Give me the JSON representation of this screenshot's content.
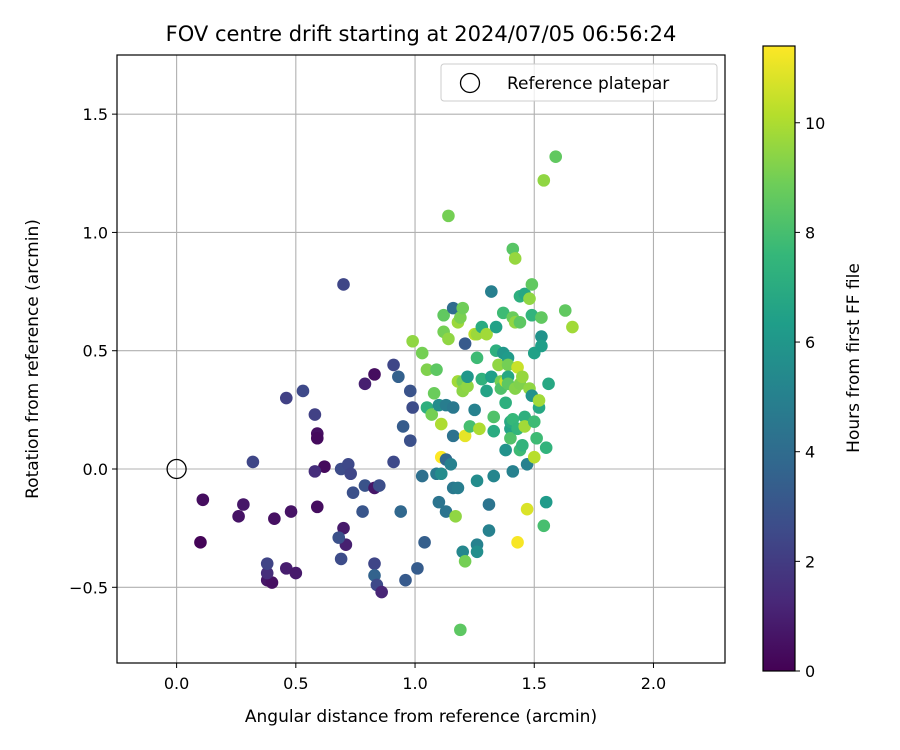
{
  "chart_data": {
    "type": "scatter",
    "title": "FOV centre drift starting at 2024/07/05 06:56:24",
    "xlabel": "Angular distance from reference (arcmin)",
    "ylabel": "Rotation from reference (arcmin)",
    "xlim": [
      -0.25,
      2.3
    ],
    "ylim": [
      -0.82,
      1.75
    ],
    "xticks": [
      0.0,
      0.5,
      1.0,
      1.5,
      2.0
    ],
    "xtick_labels": [
      "0.0",
      "0.5",
      "1.0",
      "1.5",
      "2.0"
    ],
    "yticks": [
      -0.5,
      0.0,
      0.5,
      1.0,
      1.5
    ],
    "ytick_labels": [
      "−0.5",
      "0.0",
      "0.5",
      "1.0",
      "1.5"
    ],
    "grid": true,
    "legend": {
      "placement": "top-right",
      "entries": [
        "Reference platepar"
      ]
    },
    "reference_point": {
      "name": "Reference platepar",
      "x": 0.0,
      "y": 0.0
    },
    "colorbar": {
      "label": "Hours from first FF file",
      "colormap": "viridis",
      "range": [
        0,
        11.4
      ],
      "ticks": [
        0,
        2,
        4,
        6,
        8,
        10
      ],
      "tick_labels": [
        "0",
        "2",
        "4",
        "6",
        "8",
        "10"
      ]
    },
    "points": [
      {
        "x": 0.1,
        "y": -0.31,
        "c": 0.1
      },
      {
        "x": 0.11,
        "y": -0.13,
        "c": 0.4
      },
      {
        "x": 0.26,
        "y": -0.2,
        "c": 0.6
      },
      {
        "x": 0.28,
        "y": -0.15,
        "c": 0.7
      },
      {
        "x": 0.41,
        "y": -0.21,
        "c": 0.5
      },
      {
        "x": 0.48,
        "y": -0.18,
        "c": 0.6
      },
      {
        "x": 0.46,
        "y": -0.42,
        "c": 0.9
      },
      {
        "x": 0.5,
        "y": -0.44,
        "c": 0.8
      },
      {
        "x": 0.38,
        "y": -0.47,
        "c": 0.7
      },
      {
        "x": 0.4,
        "y": -0.48,
        "c": 0.5
      },
      {
        "x": 0.38,
        "y": -0.44,
        "c": 1.5
      },
      {
        "x": 0.38,
        "y": -0.4,
        "c": 2.3
      },
      {
        "x": 0.32,
        "y": 0.03,
        "c": 2.4
      },
      {
        "x": 0.46,
        "y": 0.3,
        "c": 2.2
      },
      {
        "x": 0.53,
        "y": 0.33,
        "c": 2.5
      },
      {
        "x": 0.58,
        "y": 0.23,
        "c": 2.2
      },
      {
        "x": 0.59,
        "y": 0.15,
        "c": 0.5
      },
      {
        "x": 0.59,
        "y": 0.13,
        "c": 0.3
      },
      {
        "x": 0.62,
        "y": 0.01,
        "c": 0.3
      },
      {
        "x": 0.58,
        "y": -0.01,
        "c": 1.5
      },
      {
        "x": 0.59,
        "y": -0.16,
        "c": 0.4
      },
      {
        "x": 0.7,
        "y": 0.78,
        "c": 2.4
      },
      {
        "x": 0.69,
        "y": 0.0,
        "c": 2.6
      },
      {
        "x": 0.72,
        "y": 0.02,
        "c": 2.5
      },
      {
        "x": 0.73,
        "y": -0.02,
        "c": 2.4
      },
      {
        "x": 0.74,
        "y": -0.1,
        "c": 2.8
      },
      {
        "x": 0.79,
        "y": -0.07,
        "c": 2.9
      },
      {
        "x": 0.78,
        "y": -0.18,
        "c": 3.0
      },
      {
        "x": 0.7,
        "y": -0.25,
        "c": 0.8
      },
      {
        "x": 0.71,
        "y": -0.32,
        "c": 1.0
      },
      {
        "x": 0.68,
        "y": -0.29,
        "c": 2.8
      },
      {
        "x": 0.69,
        "y": -0.38,
        "c": 2.6
      },
      {
        "x": 0.79,
        "y": 0.36,
        "c": 1.0
      },
      {
        "x": 0.83,
        "y": 0.4,
        "c": 0.4
      },
      {
        "x": 0.83,
        "y": -0.08,
        "c": 0.7
      },
      {
        "x": 0.85,
        "y": -0.07,
        "c": 2.7
      },
      {
        "x": 0.83,
        "y": -0.4,
        "c": 2.4
      },
      {
        "x": 0.83,
        "y": -0.45,
        "c": 3.6
      },
      {
        "x": 0.84,
        "y": -0.49,
        "c": 2.5
      },
      {
        "x": 0.86,
        "y": -0.52,
        "c": 1.2
      },
      {
        "x": 0.91,
        "y": 0.44,
        "c": 2.4
      },
      {
        "x": 0.93,
        "y": 0.39,
        "c": 3.5
      },
      {
        "x": 0.95,
        "y": 0.18,
        "c": 3.3
      },
      {
        "x": 0.91,
        "y": 0.03,
        "c": 2.5
      },
      {
        "x": 0.94,
        "y": -0.18,
        "c": 3.8
      },
      {
        "x": 0.98,
        "y": 0.33,
        "c": 2.9
      },
      {
        "x": 0.99,
        "y": 0.26,
        "c": 2.6
      },
      {
        "x": 0.98,
        "y": 0.12,
        "c": 2.8
      },
      {
        "x": 0.96,
        "y": -0.47,
        "c": 3.2
      },
      {
        "x": 1.01,
        "y": -0.42,
        "c": 3.3
      },
      {
        "x": 1.04,
        "y": -0.31,
        "c": 3.4
      },
      {
        "x": 1.03,
        "y": -0.03,
        "c": 4.2
      },
      {
        "x": 0.99,
        "y": 0.54,
        "c": 9.5
      },
      {
        "x": 1.03,
        "y": 0.49,
        "c": 9.0
      },
      {
        "x": 1.05,
        "y": 0.42,
        "c": 9.2
      },
      {
        "x": 1.05,
        "y": 0.26,
        "c": 7.2
      },
      {
        "x": 1.07,
        "y": 0.23,
        "c": 9.0
      },
      {
        "x": 1.08,
        "y": 0.32,
        "c": 8.8
      },
      {
        "x": 1.09,
        "y": 0.42,
        "c": 8.5
      },
      {
        "x": 1.1,
        "y": 0.27,
        "c": 5.5
      },
      {
        "x": 1.11,
        "y": 0.19,
        "c": 10.0
      },
      {
        "x": 1.11,
        "y": 0.05,
        "c": 11.4
      },
      {
        "x": 1.13,
        "y": 0.04,
        "c": 3.8
      },
      {
        "x": 1.12,
        "y": 0.58,
        "c": 9.0
      },
      {
        "x": 1.12,
        "y": 0.65,
        "c": 8.6
      },
      {
        "x": 1.14,
        "y": 0.55,
        "c": 9.5
      },
      {
        "x": 1.14,
        "y": 1.07,
        "c": 9.0
      },
      {
        "x": 1.15,
        "y": 0.02,
        "c": 5.0
      },
      {
        "x": 1.13,
        "y": 0.27,
        "c": 4.8
      },
      {
        "x": 1.16,
        "y": 0.68,
        "c": 4.0
      },
      {
        "x": 1.16,
        "y": 0.14,
        "c": 4.3
      },
      {
        "x": 1.16,
        "y": 0.26,
        "c": 4.6
      },
      {
        "x": 1.09,
        "y": -0.02,
        "c": 4.7
      },
      {
        "x": 1.11,
        "y": -0.02,
        "c": 5.5
      },
      {
        "x": 1.1,
        "y": -0.14,
        "c": 4.4
      },
      {
        "x": 1.13,
        "y": -0.18,
        "c": 4.4
      },
      {
        "x": 1.16,
        "y": -0.08,
        "c": 4.6
      },
      {
        "x": 1.18,
        "y": -0.08,
        "c": 4.8
      },
      {
        "x": 1.17,
        "y": -0.2,
        "c": 9.5
      },
      {
        "x": 1.19,
        "y": -0.68,
        "c": 8.5
      },
      {
        "x": 1.2,
        "y": -0.35,
        "c": 5.3
      },
      {
        "x": 1.21,
        "y": -0.39,
        "c": 9.0
      },
      {
        "x": 1.18,
        "y": 0.37,
        "c": 9.8
      },
      {
        "x": 1.18,
        "y": 0.62,
        "c": 9.7
      },
      {
        "x": 1.19,
        "y": 0.64,
        "c": 9.1
      },
      {
        "x": 1.2,
        "y": 0.68,
        "c": 8.9
      },
      {
        "x": 1.2,
        "y": 0.37,
        "c": 9.0
      },
      {
        "x": 1.2,
        "y": 0.33,
        "c": 9.4
      },
      {
        "x": 1.21,
        "y": 0.53,
        "c": 3.2
      },
      {
        "x": 1.22,
        "y": 0.35,
        "c": 9.5
      },
      {
        "x": 1.22,
        "y": 0.39,
        "c": 6.0
      },
      {
        "x": 1.21,
        "y": 0.14,
        "c": 11.0
      },
      {
        "x": 1.23,
        "y": 0.18,
        "c": 8.0
      },
      {
        "x": 1.25,
        "y": 0.25,
        "c": 5.0
      },
      {
        "x": 1.25,
        "y": 0.57,
        "c": 10.2
      },
      {
        "x": 1.26,
        "y": 0.57,
        "c": 9.7
      },
      {
        "x": 1.26,
        "y": 0.47,
        "c": 7.8
      },
      {
        "x": 1.27,
        "y": 0.17,
        "c": 10.0
      },
      {
        "x": 1.26,
        "y": -0.05,
        "c": 5.5
      },
      {
        "x": 1.26,
        "y": -0.32,
        "c": 5.0
      },
      {
        "x": 1.26,
        "y": -0.35,
        "c": 5.6
      },
      {
        "x": 1.28,
        "y": 0.6,
        "c": 7.0
      },
      {
        "x": 1.28,
        "y": 0.38,
        "c": 7.3
      },
      {
        "x": 1.3,
        "y": 0.33,
        "c": 6.6
      },
      {
        "x": 1.3,
        "y": 0.57,
        "c": 9.8
      },
      {
        "x": 1.32,
        "y": 0.75,
        "c": 4.9
      },
      {
        "x": 1.31,
        "y": -0.15,
        "c": 4.4
      },
      {
        "x": 1.31,
        "y": -0.26,
        "c": 5.0
      },
      {
        "x": 1.32,
        "y": 0.39,
        "c": 6.4
      },
      {
        "x": 1.33,
        "y": 0.22,
        "c": 8.2
      },
      {
        "x": 1.33,
        "y": 0.16,
        "c": 7.0
      },
      {
        "x": 1.33,
        "y": -0.03,
        "c": 5.2
      },
      {
        "x": 1.34,
        "y": 0.6,
        "c": 6.5
      },
      {
        "x": 1.34,
        "y": 0.5,
        "c": 7.2
      },
      {
        "x": 1.35,
        "y": 0.44,
        "c": 9.5
      },
      {
        "x": 1.36,
        "y": 0.37,
        "c": 9.0
      },
      {
        "x": 1.36,
        "y": 0.34,
        "c": 8.2
      },
      {
        "x": 1.37,
        "y": 0.66,
        "c": 7.8
      },
      {
        "x": 1.37,
        "y": 0.49,
        "c": 6.0
      },
      {
        "x": 1.38,
        "y": 0.28,
        "c": 7.2
      },
      {
        "x": 1.38,
        "y": 0.08,
        "c": 5.8
      },
      {
        "x": 1.38,
        "y": 0.37,
        "c": 10.4
      },
      {
        "x": 1.39,
        "y": 0.47,
        "c": 6.2
      },
      {
        "x": 1.39,
        "y": 0.44,
        "c": 9.0
      },
      {
        "x": 1.39,
        "y": 0.39,
        "c": 6.8
      },
      {
        "x": 1.39,
        "y": 0.36,
        "c": 8.5
      },
      {
        "x": 1.4,
        "y": 0.17,
        "c": 6.6
      },
      {
        "x": 1.4,
        "y": 0.2,
        "c": 6.9
      },
      {
        "x": 1.4,
        "y": 0.13,
        "c": 8.2
      },
      {
        "x": 1.41,
        "y": 0.93,
        "c": 8.4
      },
      {
        "x": 1.41,
        "y": 0.64,
        "c": 8.8
      },
      {
        "x": 1.41,
        "y": 0.21,
        "c": 7.6
      },
      {
        "x": 1.41,
        "y": -0.01,
        "c": 5.0
      },
      {
        "x": 1.42,
        "y": 0.89,
        "c": 9.6
      },
      {
        "x": 1.42,
        "y": 0.62,
        "c": 9.5
      },
      {
        "x": 1.42,
        "y": 0.34,
        "c": 9.3
      },
      {
        "x": 1.43,
        "y": 0.43,
        "c": 10.5
      },
      {
        "x": 1.43,
        "y": 0.17,
        "c": 7.5
      },
      {
        "x": 1.43,
        "y": -0.31,
        "c": 11.3
      },
      {
        "x": 1.44,
        "y": 0.73,
        "c": 7.2
      },
      {
        "x": 1.44,
        "y": 0.62,
        "c": 8.5
      },
      {
        "x": 1.44,
        "y": 0.36,
        "c": 9.2
      },
      {
        "x": 1.44,
        "y": 0.08,
        "c": 7.8
      },
      {
        "x": 1.45,
        "y": 0.1,
        "c": 7.4
      },
      {
        "x": 1.45,
        "y": 0.39,
        "c": 9.6
      },
      {
        "x": 1.46,
        "y": 0.74,
        "c": 6.8
      },
      {
        "x": 1.46,
        "y": 0.22,
        "c": 7.2
      },
      {
        "x": 1.46,
        "y": 0.18,
        "c": 9.8
      },
      {
        "x": 1.47,
        "y": 0.02,
        "c": 5.0
      },
      {
        "x": 1.47,
        "y": -0.17,
        "c": 10.8
      },
      {
        "x": 1.48,
        "y": 0.72,
        "c": 9.5
      },
      {
        "x": 1.48,
        "y": 0.34,
        "c": 9.5
      },
      {
        "x": 1.49,
        "y": 0.78,
        "c": 8.6
      },
      {
        "x": 1.49,
        "y": 0.65,
        "c": 7.4
      },
      {
        "x": 1.49,
        "y": 0.31,
        "c": 5.8
      },
      {
        "x": 1.5,
        "y": 0.49,
        "c": 6.5
      },
      {
        "x": 1.5,
        "y": 0.2,
        "c": 7.8
      },
      {
        "x": 1.5,
        "y": 0.05,
        "c": 10.2
      },
      {
        "x": 1.51,
        "y": 0.13,
        "c": 7.8
      },
      {
        "x": 1.52,
        "y": 0.26,
        "c": 6.8
      },
      {
        "x": 1.52,
        "y": 0.29,
        "c": 9.8
      },
      {
        "x": 1.53,
        "y": 0.56,
        "c": 5.8
      },
      {
        "x": 1.53,
        "y": 0.52,
        "c": 6.4
      },
      {
        "x": 1.53,
        "y": 0.64,
        "c": 8.6
      },
      {
        "x": 1.54,
        "y": 1.22,
        "c": 9.5
      },
      {
        "x": 1.54,
        "y": -0.24,
        "c": 8.0
      },
      {
        "x": 1.55,
        "y": -0.14,
        "c": 6.2
      },
      {
        "x": 1.55,
        "y": 0.09,
        "c": 7.4
      },
      {
        "x": 1.56,
        "y": 0.36,
        "c": 6.8
      },
      {
        "x": 1.59,
        "y": 1.32,
        "c": 8.6
      },
      {
        "x": 1.63,
        "y": 0.67,
        "c": 8.6
      },
      {
        "x": 1.66,
        "y": 0.6,
        "c": 9.8
      }
    ]
  }
}
